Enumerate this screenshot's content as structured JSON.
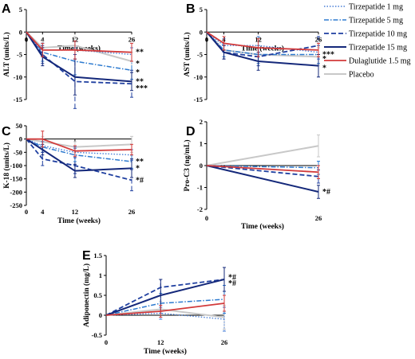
{
  "legend": [
    {
      "name": "Tirzepatide 1 mg",
      "color": "#4a7fd6",
      "dash": "1.5,2",
      "width": 1.4
    },
    {
      "name": "Tirzepatide 5 mg",
      "color": "#2e7bd0",
      "dash": "6,2,1.5,2",
      "width": 1.5
    },
    {
      "name": "Tirzepatide 10 mg",
      "color": "#1f3fa0",
      "dash": "6,3",
      "width": 1.8
    },
    {
      "name": "Tirzepatide 15 mg",
      "color": "#14287a",
      "dash": "",
      "width": 2
    },
    {
      "name": "Dulaglutide 1.5 mg",
      "color": "#d23a3a",
      "dash": "",
      "width": 1.8
    },
    {
      "name": "Placebo",
      "color": "#c8c8c8",
      "dash": "",
      "width": 2
    }
  ],
  "chart_data": [
    {
      "panel": "A",
      "type": "line",
      "xlabel": "Time (weeks)",
      "ylabel": "ALT (units/L)",
      "xlim": [
        0,
        26
      ],
      "ylim": [
        -15,
        5
      ],
      "xticks": [
        0,
        4,
        12,
        26
      ],
      "yticks": [
        -15,
        -10,
        -5,
        0,
        5
      ],
      "series": [
        {
          "name": "Tirzepatide 1 mg",
          "x": [
            0,
            4,
            12,
            26
          ],
          "y": [
            0,
            -4,
            -4,
            -5
          ],
          "err": [
            0,
            1.5,
            2,
            1.5
          ]
        },
        {
          "name": "Tirzepatide 5 mg",
          "x": [
            0,
            4,
            12,
            26
          ],
          "y": [
            0,
            -4.5,
            -6.5,
            -8.5
          ],
          "err": [
            0,
            2,
            3,
            2
          ]
        },
        {
          "name": "Tirzepatide 10 mg",
          "x": [
            0,
            4,
            12,
            26
          ],
          "y": [
            0,
            -5,
            -11,
            -11.5
          ],
          "err": [
            0,
            2,
            6,
            3
          ]
        },
        {
          "name": "Tirzepatide 15 mg",
          "x": [
            0,
            4,
            12,
            26
          ],
          "y": [
            0,
            -5.5,
            -10,
            -11
          ],
          "err": [
            0,
            2,
            4,
            2
          ]
        },
        {
          "name": "Dulaglutide 1.5 mg",
          "x": [
            0,
            4,
            12,
            26
          ],
          "y": [
            0,
            -4,
            -4,
            -4.5
          ],
          "err": [
            0,
            1.5,
            2,
            2
          ]
        },
        {
          "name": "Placebo",
          "x": [
            0,
            4,
            12,
            26
          ],
          "y": [
            0,
            -3.5,
            -3,
            -6.5
          ],
          "err": [
            0,
            1.5,
            2,
            2
          ]
        }
      ],
      "annotations": [
        {
          "text": "**",
          "x": 26,
          "y": -4.5
        },
        {
          "text": "*",
          "x": 26,
          "y": -7
        },
        {
          "text": "*",
          "x": 26,
          "y": -9
        },
        {
          "text": "**",
          "x": 26,
          "y": -11
        },
        {
          "text": "***",
          "x": 26,
          "y": -12.5
        }
      ]
    },
    {
      "panel": "B",
      "type": "line",
      "xlabel": "Time (weeks)",
      "ylabel": "AST (units/L)",
      "xlim": [
        0,
        26
      ],
      "ylim": [
        -15,
        5
      ],
      "xticks": [
        0,
        4,
        12,
        26
      ],
      "yticks": [
        -15,
        -10,
        -5,
        0,
        5
      ],
      "series": [
        {
          "name": "Tirzepatide 1 mg",
          "x": [
            0,
            4,
            12,
            26
          ],
          "y": [
            0,
            -3,
            -3,
            -4.5
          ],
          "err": [
            0,
            1.5,
            2,
            1.5
          ]
        },
        {
          "name": "Tirzepatide 5 mg",
          "x": [
            0,
            4,
            12,
            26
          ],
          "y": [
            0,
            -4,
            -5,
            -5
          ],
          "err": [
            0,
            1.5,
            2,
            2
          ]
        },
        {
          "name": "Tirzepatide 10 mg",
          "x": [
            0,
            4,
            12,
            26
          ],
          "y": [
            0,
            -4.5,
            -5.5,
            -3
          ],
          "err": [
            0,
            1.5,
            2,
            2
          ]
        },
        {
          "name": "Tirzepatide 15 mg",
          "x": [
            0,
            4,
            12,
            26
          ],
          "y": [
            0,
            -4.5,
            -6.5,
            -7.5
          ],
          "err": [
            0,
            1.5,
            2,
            2.5
          ]
        },
        {
          "name": "Dulaglutide 1.5 mg",
          "x": [
            0,
            4,
            12,
            26
          ],
          "y": [
            0,
            -2.5,
            -3.5,
            -4
          ],
          "err": [
            0,
            1.5,
            2,
            1.5
          ]
        },
        {
          "name": "Placebo",
          "x": [
            0,
            4,
            12,
            26
          ],
          "y": [
            0,
            -4,
            -5,
            -5.5
          ],
          "err": [
            0,
            1.5,
            2,
            2
          ]
        }
      ],
      "annotations": [
        {
          "text": "***",
          "x": 26,
          "y": -5
        },
        {
          "text": "*",
          "x": 26,
          "y": -6
        },
        {
          "text": "*",
          "x": 26,
          "y": -8
        }
      ]
    },
    {
      "panel": "C",
      "type": "line",
      "xlabel": "Time (weeks)",
      "ylabel": "K-18 (units/L)",
      "xlim": [
        0,
        26
      ],
      "ylim": [
        -250,
        50
      ],
      "xticks": [
        0,
        4,
        12,
        26
      ],
      "yticks": [
        -250,
        -200,
        -150,
        -100,
        -50,
        0,
        50
      ],
      "series": [
        {
          "name": "Tirzepatide 1 mg",
          "x": [
            0,
            4,
            12,
            26
          ],
          "y": [
            0,
            -25,
            -50,
            -60
          ],
          "err": [
            0,
            15,
            20,
            20
          ]
        },
        {
          "name": "Tirzepatide 5 mg",
          "x": [
            0,
            4,
            12,
            26
          ],
          "y": [
            0,
            -30,
            -60,
            -85
          ],
          "err": [
            0,
            20,
            25,
            25
          ]
        },
        {
          "name": "Tirzepatide 10 mg",
          "x": [
            0,
            4,
            12,
            26
          ],
          "y": [
            0,
            -75,
            -100,
            -155
          ],
          "err": [
            0,
            25,
            30,
            40
          ]
        },
        {
          "name": "Tirzepatide 15 mg",
          "x": [
            0,
            4,
            12,
            26
          ],
          "y": [
            0,
            -40,
            -120,
            -110
          ],
          "err": [
            0,
            20,
            25,
            35
          ]
        },
        {
          "name": "Dulaglutide 1.5 mg",
          "x": [
            0,
            4,
            12,
            26
          ],
          "y": [
            0,
            0,
            -45,
            -40
          ],
          "err": [
            0,
            30,
            20,
            20
          ]
        },
        {
          "name": "Placebo",
          "x": [
            0,
            4,
            12,
            26
          ],
          "y": [
            0,
            -10,
            -30,
            -20
          ],
          "err": [
            0,
            20,
            20,
            30
          ]
        }
      ],
      "annotations": [
        {
          "text": "**",
          "x": 26,
          "y": -85
        },
        {
          "text": "*",
          "x": 26,
          "y": -110
        },
        {
          "text": "*#",
          "x": 26,
          "y": -155
        }
      ]
    },
    {
      "panel": "D",
      "type": "line",
      "xlabel": "Time (weeks)",
      "ylabel": "Pro-C3 (ng/mL)",
      "xlim": [
        0,
        26
      ],
      "ylim": [
        -2,
        2
      ],
      "xticks": [
        0,
        26
      ],
      "yticks": [
        -2,
        -1,
        0,
        1,
        2
      ],
      "series": [
        {
          "name": "Tirzepatide 1 mg",
          "x": [
            0,
            26
          ],
          "y": [
            0,
            -0.3
          ],
          "err": [
            0,
            0.3
          ]
        },
        {
          "name": "Tirzepatide 5 mg",
          "x": [
            0,
            26
          ],
          "y": [
            0,
            -0.1
          ],
          "err": [
            0,
            0.3
          ]
        },
        {
          "name": "Tirzepatide 10 mg",
          "x": [
            0,
            26
          ],
          "y": [
            0,
            -0.5
          ],
          "err": [
            0,
            0.3
          ]
        },
        {
          "name": "Tirzepatide 15 mg",
          "x": [
            0,
            26
          ],
          "y": [
            0,
            -1.2
          ],
          "err": [
            0,
            0.3
          ]
        },
        {
          "name": "Dulaglutide 1.5 mg",
          "x": [
            0,
            26
          ],
          "y": [
            0,
            -0.3
          ],
          "err": [
            0,
            0.3
          ]
        },
        {
          "name": "Placebo",
          "x": [
            0,
            26
          ],
          "y": [
            0,
            0.9
          ],
          "err": [
            0,
            0.5
          ]
        }
      ],
      "annotations": [
        {
          "text": "*#",
          "x": 26,
          "y": -1.2
        }
      ]
    },
    {
      "panel": "E",
      "type": "line",
      "xlabel": "Time (weeks)",
      "ylabel": "Adiponectin (mg/L)",
      "xlim": [
        0,
        26
      ],
      "ylim": [
        -0.5,
        1.5
      ],
      "xticks": [
        0,
        12,
        26
      ],
      "yticks": [
        -0.5,
        0.0,
        0.5,
        1.0,
        1.5
      ],
      "series": [
        {
          "name": "Tirzepatide 1 mg",
          "x": [
            0,
            12,
            26
          ],
          "y": [
            0,
            0.05,
            -0.1
          ],
          "err": [
            0,
            0.15,
            0.3
          ]
        },
        {
          "name": "Tirzepatide 5 mg",
          "x": [
            0,
            12,
            26
          ],
          "y": [
            0,
            0.3,
            0.4
          ],
          "err": [
            0,
            0.25,
            0.35
          ]
        },
        {
          "name": "Tirzepatide 10 mg",
          "x": [
            0,
            12,
            26
          ],
          "y": [
            0,
            0.7,
            0.9
          ],
          "err": [
            0,
            0.2,
            0.3
          ]
        },
        {
          "name": "Tirzepatide 15 mg",
          "x": [
            0,
            12,
            26
          ],
          "y": [
            0,
            0.5,
            0.9
          ],
          "err": [
            0,
            0.4,
            0.3
          ]
        },
        {
          "name": "Dulaglutide 1.5 mg",
          "x": [
            0,
            12,
            26
          ],
          "y": [
            0,
            0.1,
            0.3
          ],
          "err": [
            0,
            0.15,
            0.2
          ]
        },
        {
          "name": "Placebo",
          "x": [
            0,
            12,
            26
          ],
          "y": [
            0,
            0.15,
            -0.05
          ],
          "err": [
            0,
            0.2,
            0.3
          ]
        }
      ],
      "annotations": [
        {
          "text": "*#",
          "x": 26,
          "y": 0.95
        },
        {
          "text": "*#",
          "x": 26,
          "y": 0.8
        }
      ]
    }
  ]
}
